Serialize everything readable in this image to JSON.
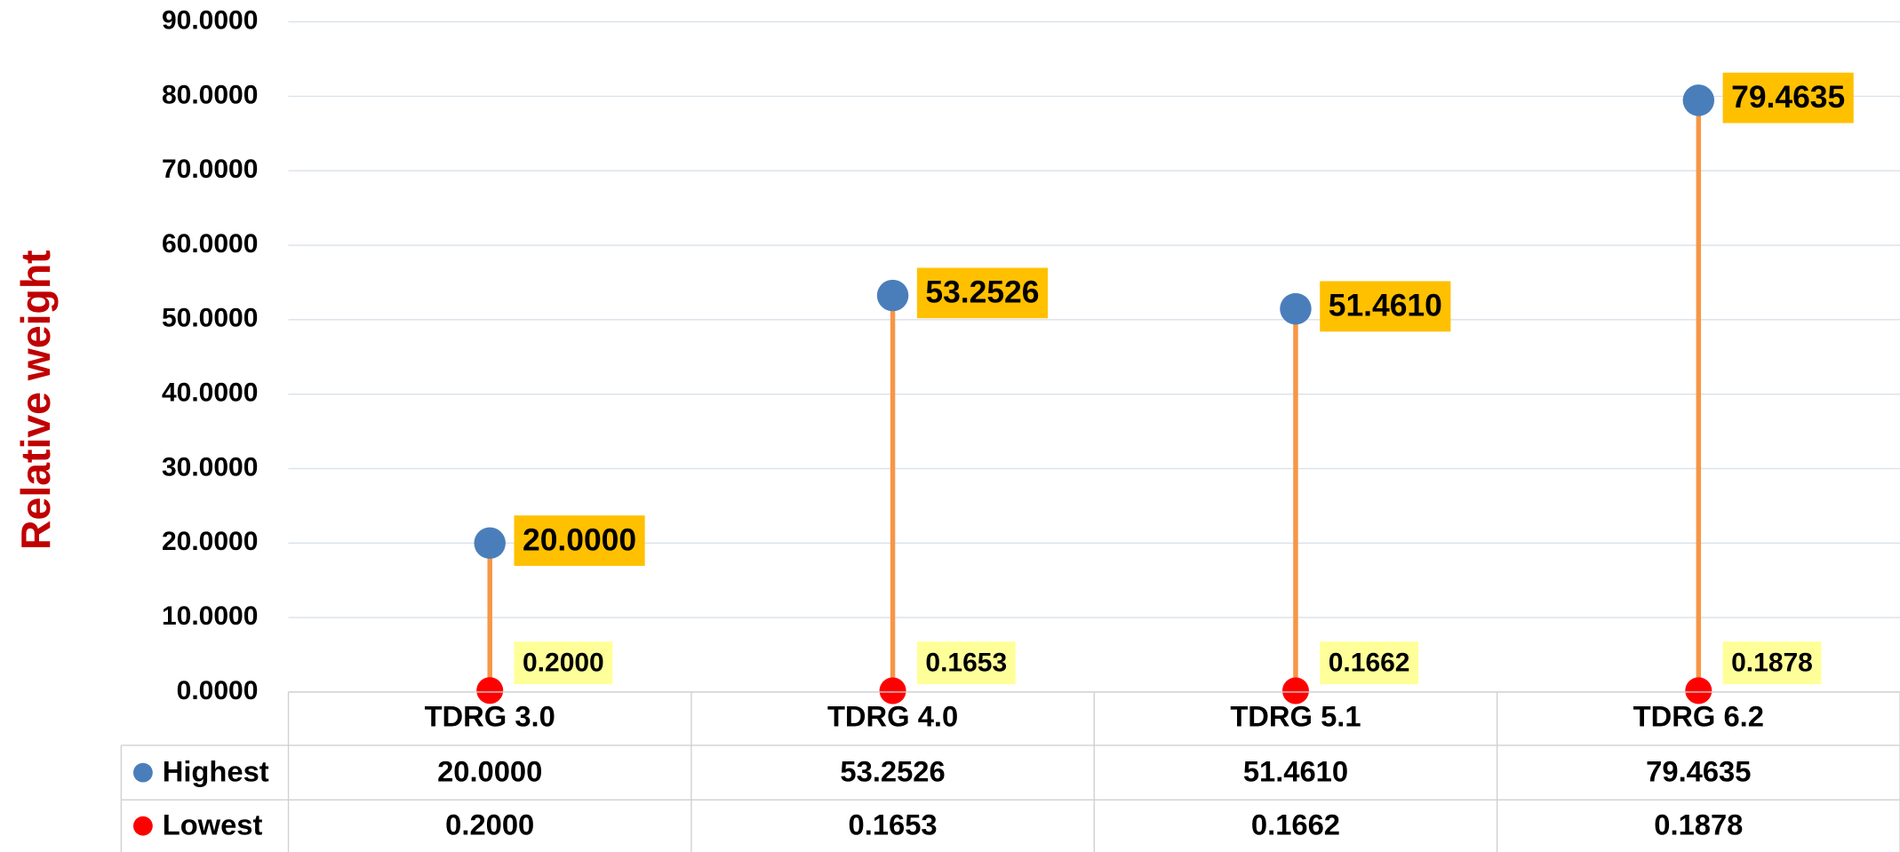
{
  "chart_data": {
    "type": "dumbbell",
    "y_label": "Relative weight",
    "categories": [
      "TDRG 3.0",
      "TDRG 4.0",
      "TDRG 5.1",
      "TDRG 6.2"
    ],
    "series": [
      {
        "name": "Highest",
        "color": "#4a7ebb",
        "values": [
          20,
          53.2526,
          51.461,
          79.4635
        ],
        "value_labels": [
          "20.0000",
          "53.2526",
          "51.4610",
          "79.4635"
        ],
        "label_color": "#ffc000"
      },
      {
        "name": "Lowest",
        "color": "#ff0000",
        "values": [
          0.2,
          0.1653,
          0.1662,
          0.1878
        ],
        "value_labels": [
          "0.2000",
          "0.1653",
          "0.1662",
          "0.1878"
        ],
        "label_color": "#ffff99"
      }
    ],
    "connector_color": "#f79646",
    "ylim": [
      0,
      90
    ],
    "yticks": [
      {
        "value": 0,
        "label": "0.0000"
      },
      {
        "value": 10,
        "label": "10.0000"
      },
      {
        "value": 20,
        "label": "20.0000"
      },
      {
        "value": 30,
        "label": "30.0000"
      },
      {
        "value": 40,
        "label": "40.0000"
      },
      {
        "value": 50,
        "label": "50.0000"
      },
      {
        "value": 60,
        "label": "60.0000"
      },
      {
        "value": 70,
        "label": "70.0000"
      },
      {
        "value": 80,
        "label": "80.0000"
      },
      {
        "value": 90,
        "label": "90.0000"
      }
    ],
    "grid": true,
    "data_table": true
  }
}
